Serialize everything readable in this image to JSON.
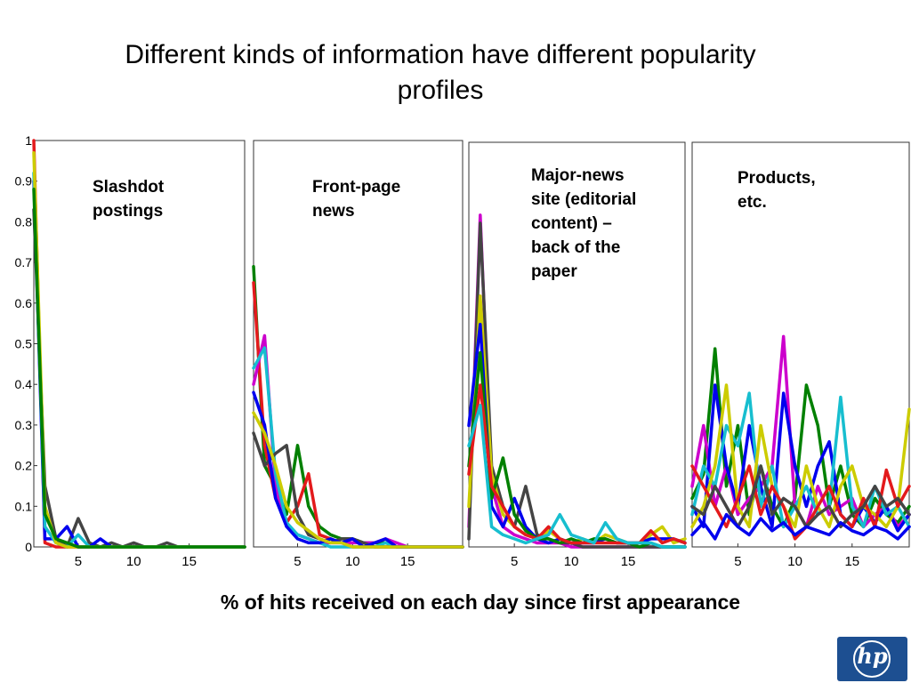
{
  "title": "Different kinds of information have different popularity profiles",
  "xaxis_caption": "% of hits received on each day since first appearance",
  "logo_text": "hp",
  "colors": {
    "brand": "#1d4f91"
  },
  "chart_data": [
    {
      "type": "line",
      "panel_label": [
        "Slashdot",
        "postings"
      ],
      "xlim": [
        1,
        20
      ],
      "ylim": [
        0,
        1
      ],
      "xticks": [
        5,
        10,
        15
      ],
      "yticks": [
        0,
        0.1,
        0.2,
        0.3,
        0.4,
        0.5,
        0.6,
        0.7,
        0.8,
        0.9,
        1
      ],
      "series": [
        {
          "color": "#e31a1c",
          "values": [
            1.0,
            0.01,
            0,
            0,
            0,
            0,
            0,
            0,
            0,
            0,
            0,
            0,
            0,
            0,
            0,
            0,
            0,
            0,
            0,
            0
          ]
        },
        {
          "color": "#444444",
          "values": [
            0.83,
            0.15,
            0.02,
            0,
            0.07,
            0.01,
            0,
            0.01,
            0,
            0.01,
            0,
            0,
            0.01,
            0,
            0,
            0,
            0,
            0,
            0,
            0
          ]
        },
        {
          "color": "#0000ee",
          "values": [
            0.9,
            0.02,
            0.02,
            0.05,
            0,
            0,
            0.02,
            0,
            0,
            0,
            0,
            0,
            0,
            0,
            0,
            0,
            0,
            0,
            0,
            0
          ]
        },
        {
          "color": "#17becf",
          "values": [
            0.92,
            0.05,
            0.01,
            0,
            0.03,
            0,
            0,
            0,
            0,
            0,
            0,
            0,
            0,
            0,
            0,
            0,
            0,
            0,
            0,
            0
          ]
        },
        {
          "color": "#cccc00",
          "values": [
            0.97,
            0.1,
            0.01,
            0,
            0,
            0,
            0,
            0,
            0,
            0,
            0,
            0,
            0,
            0,
            0,
            0,
            0,
            0,
            0,
            0
          ]
        },
        {
          "color": "#008000",
          "values": [
            0.88,
            0.08,
            0.02,
            0.01,
            0,
            0,
            0,
            0,
            0,
            0,
            0,
            0,
            0,
            0,
            0,
            0,
            0,
            0,
            0,
            0
          ]
        }
      ]
    },
    {
      "type": "line",
      "panel_label": [
        "Front-page",
        "news"
      ],
      "xlim": [
        1,
        20
      ],
      "ylim": [
        0,
        1
      ],
      "xticks": [
        5,
        10,
        15
      ],
      "series": [
        {
          "color": "#008000",
          "values": [
            0.69,
            0.2,
            0.15,
            0.08,
            0.25,
            0.1,
            0.05,
            0.03,
            0.02,
            0.02,
            0.01,
            0.01,
            0.01,
            0,
            0,
            0,
            0,
            0,
            0,
            0
          ]
        },
        {
          "color": "#e31a1c",
          "values": [
            0.65,
            0.25,
            0.12,
            0.06,
            0.1,
            0.18,
            0.03,
            0.02,
            0.01,
            0,
            0,
            0,
            0,
            0,
            0,
            0,
            0,
            0,
            0,
            0
          ]
        },
        {
          "color": "#cc00cc",
          "values": [
            0.4,
            0.52,
            0.15,
            0.05,
            0.03,
            0.02,
            0.01,
            0.01,
            0.01,
            0.01,
            0.01,
            0.01,
            0.02,
            0.01,
            0,
            0,
            0,
            0,
            0,
            0
          ]
        },
        {
          "color": "#17becf",
          "values": [
            0.44,
            0.49,
            0.18,
            0.06,
            0.03,
            0.02,
            0.01,
            0,
            0,
            0,
            0,
            0,
            0.01,
            0,
            0,
            0,
            0,
            0,
            0,
            0
          ]
        },
        {
          "color": "#444444",
          "values": [
            0.28,
            0.2,
            0.23,
            0.25,
            0.08,
            0.03,
            0.02,
            0.01,
            0.02,
            0.02,
            0.01,
            0,
            0,
            0,
            0,
            0,
            0,
            0,
            0,
            0
          ]
        },
        {
          "color": "#0000ee",
          "values": [
            0.38,
            0.3,
            0.12,
            0.05,
            0.02,
            0.01,
            0.01,
            0.02,
            0.01,
            0.02,
            0,
            0.01,
            0.02,
            0,
            0,
            0,
            0,
            0,
            0,
            0
          ]
        },
        {
          "color": "#cccc00",
          "values": [
            0.33,
            0.28,
            0.2,
            0.1,
            0.06,
            0.04,
            0.02,
            0.01,
            0.01,
            0,
            0,
            0,
            0,
            0,
            0,
            0,
            0,
            0,
            0,
            0
          ]
        }
      ]
    },
    {
      "type": "line",
      "panel_label": [
        "Major-news",
        "site (editorial",
        "content) –",
        "back of the",
        "paper"
      ],
      "xlim": [
        1,
        20
      ],
      "ylim": [
        0,
        1
      ],
      "xticks": [
        5,
        10,
        15
      ],
      "series": [
        {
          "color": "#cc00cc",
          "values": [
            0.05,
            0.82,
            0.15,
            0.05,
            0.03,
            0.02,
            0.01,
            0.01,
            0.01,
            0,
            0,
            0,
            0,
            0,
            0,
            0,
            0,
            0,
            0,
            0
          ]
        },
        {
          "color": "#444444",
          "values": [
            0.02,
            0.8,
            0.2,
            0.1,
            0.05,
            0.15,
            0.03,
            0.02,
            0.01,
            0.01,
            0,
            0,
            0,
            0,
            0,
            0,
            0,
            0,
            0,
            0
          ]
        },
        {
          "color": "#cccc00",
          "values": [
            0.1,
            0.62,
            0.18,
            0.08,
            0.05,
            0.03,
            0.02,
            0.04,
            0.02,
            0.01,
            0.02,
            0.01,
            0.03,
            0.02,
            0.01,
            0.01,
            0.03,
            0.05,
            0.01,
            0.02
          ]
        },
        {
          "color": "#0000ee",
          "values": [
            0.3,
            0.55,
            0.1,
            0.05,
            0.12,
            0.05,
            0.02,
            0.01,
            0.02,
            0.01,
            0.01,
            0.01,
            0.02,
            0.01,
            0.01,
            0.01,
            0.02,
            0.02,
            0.02,
            0.01
          ]
        },
        {
          "color": "#008000",
          "values": [
            0.2,
            0.48,
            0.12,
            0.22,
            0.08,
            0.04,
            0.02,
            0.02,
            0.01,
            0.02,
            0.01,
            0.02,
            0.02,
            0.01,
            0.01,
            0,
            0.01,
            0,
            0,
            0
          ]
        },
        {
          "color": "#e31a1c",
          "values": [
            0.18,
            0.4,
            0.15,
            0.1,
            0.05,
            0.03,
            0.02,
            0.05,
            0.02,
            0.01,
            0.01,
            0.01,
            0.01,
            0.01,
            0.01,
            0.01,
            0.04,
            0.01,
            0.02,
            0.01
          ]
        },
        {
          "color": "#17becf",
          "values": [
            0.25,
            0.35,
            0.05,
            0.03,
            0.02,
            0.01,
            0.02,
            0.03,
            0.08,
            0.03,
            0.02,
            0.01,
            0.06,
            0.02,
            0.01,
            0.01,
            0.01,
            0,
            0,
            0
          ]
        }
      ]
    },
    {
      "type": "line",
      "panel_label": [
        "Products,",
        "etc."
      ],
      "xlim": [
        1,
        20
      ],
      "ylim": [
        0,
        1
      ],
      "xticks": [
        5,
        10,
        15
      ],
      "series": [
        {
          "color": "#008000",
          "values": [
            0.12,
            0.18,
            0.49,
            0.15,
            0.3,
            0.08,
            0.2,
            0.1,
            0.05,
            0.12,
            0.4,
            0.3,
            0.1,
            0.2,
            0.08,
            0.05,
            0.12,
            0.08,
            0.06,
            0.1
          ]
        },
        {
          "color": "#cc00cc",
          "values": [
            0.15,
            0.3,
            0.1,
            0.2,
            0.08,
            0.12,
            0.15,
            0.2,
            0.52,
            0.1,
            0.05,
            0.15,
            0.08,
            0.1,
            0.12,
            0.05,
            0.08,
            0.1,
            0.05,
            0.08
          ]
        },
        {
          "color": "#0000ee",
          "values": [
            0.1,
            0.05,
            0.4,
            0.2,
            0.1,
            0.3,
            0.15,
            0.05,
            0.38,
            0.2,
            0.1,
            0.2,
            0.26,
            0.08,
            0.05,
            0.1,
            0.06,
            0.1,
            0.04,
            0.08
          ]
        },
        {
          "color": "#17becf",
          "values": [
            0.08,
            0.2,
            0.15,
            0.3,
            0.25,
            0.38,
            0.1,
            0.2,
            0.05,
            0.1,
            0.15,
            0.08,
            0.1,
            0.37,
            0.1,
            0.05,
            0.15,
            0.08,
            0.1,
            0.05
          ]
        },
        {
          "color": "#cccc00",
          "values": [
            0.05,
            0.1,
            0.2,
            0.4,
            0.1,
            0.05,
            0.3,
            0.15,
            0.1,
            0.05,
            0.2,
            0.1,
            0.05,
            0.15,
            0.2,
            0.1,
            0.08,
            0.05,
            0.1,
            0.34
          ]
        },
        {
          "color": "#e31a1c",
          "values": [
            0.2,
            0.15,
            0.1,
            0.05,
            0.12,
            0.2,
            0.08,
            0.15,
            0.1,
            0.02,
            0.05,
            0.1,
            0.15,
            0.08,
            0.05,
            0.12,
            0.05,
            0.19,
            0.1,
            0.15
          ]
        },
        {
          "color": "#444444",
          "values": [
            0.1,
            0.08,
            0.15,
            0.1,
            0.05,
            0.1,
            0.2,
            0.08,
            0.12,
            0.1,
            0.05,
            0.08,
            0.1,
            0.05,
            0.08,
            0.1,
            0.15,
            0.1,
            0.12,
            0.08
          ]
        },
        {
          "color": "#0000ee",
          "values": [
            0.03,
            0.06,
            0.02,
            0.08,
            0.05,
            0.03,
            0.07,
            0.04,
            0.06,
            0.03,
            0.05,
            0.04,
            0.03,
            0.06,
            0.04,
            0.03,
            0.05,
            0.04,
            0.02,
            0.05
          ]
        }
      ]
    }
  ]
}
